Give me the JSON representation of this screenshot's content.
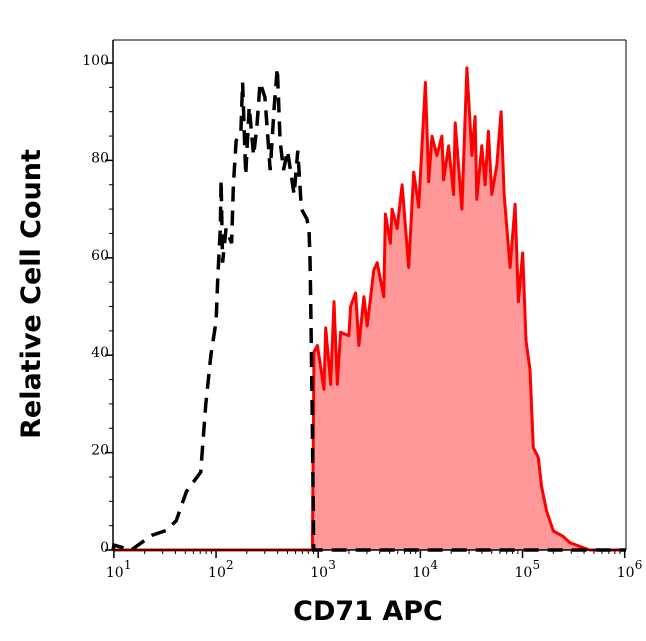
{
  "chart_data": {
    "type": "area",
    "title": "",
    "xlabel": "CD71 APC",
    "ylabel": "Relative Cell Count",
    "x_scale": "log",
    "xlim": [
      9.8,
      1030000
    ],
    "ylim": [
      0,
      105
    ],
    "grid": false,
    "y_ticks": [
      0,
      20,
      40,
      60,
      80,
      100
    ],
    "x_ticks": [
      {
        "value": 10,
        "base": "10",
        "exp": "1"
      },
      {
        "value": 100,
        "base": "10",
        "exp": "2"
      },
      {
        "value": 1000,
        "base": "10",
        "exp": "3"
      },
      {
        "value": 10000,
        "base": "10",
        "exp": "4"
      },
      {
        "value": 100000,
        "base": "10",
        "exp": "5"
      },
      {
        "value": 1000000,
        "base": "10",
        "exp": "6"
      }
    ],
    "colors": {
      "stained_line": "#ff0000",
      "stained_fill": "#ff9999",
      "control_line": "#000000"
    },
    "series": [
      {
        "style": "dashed-line",
        "color": "#000000",
        "x": [
          9.8,
          10,
          14.8,
          23.4,
          32.4,
          40.7,
          51.3,
          70.8,
          79.4,
          89.1,
          100,
          104,
          110,
          112,
          116,
          125,
          142,
          148,
          157,
          175,
          182,
          195,
          211,
          233,
          251,
          270,
          301,
          339,
          371,
          398,
          424,
          457,
          501,
          581,
          631,
          685,
          773,
          813,
          832,
          845,
          871,
          904,
          1030000
        ],
        "y": [
          0,
          1,
          0,
          3,
          4,
          6,
          12,
          16,
          30,
          40,
          47,
          56,
          66,
          76,
          59,
          66,
          63,
          75,
          84,
          86,
          96,
          77,
          91,
          81,
          87,
          96,
          93,
          78,
          91,
          99,
          84,
          78,
          82,
          73,
          82,
          70,
          68,
          66,
          59,
          51,
          30,
          0,
          0
        ]
      },
      {
        "style": "filled-line",
        "color": "#ff0000",
        "x": [
          9.8,
          860,
          877,
          910,
          982,
          1140,
          1183,
          1324,
          1427,
          1538,
          1657,
          1999,
          2075,
          2323,
          2503,
          2800,
          3015,
          3499,
          3776,
          4385,
          4550,
          5093,
          5285,
          5914,
          6619,
          7690,
          8610,
          9640,
          11190,
          12060,
          13000,
          14530,
          16260,
          16870,
          18880,
          21130,
          21930,
          25470,
          28510,
          31910,
          34370,
          35700,
          39940,
          43040,
          46380,
          49980,
          55940,
          61660,
          65950,
          75490,
          84500,
          91050,
          100300,
          108100,
          118300,
          127400,
          142600,
          153700,
          171900,
          199900,
          250300,
          290500,
          391700,
          455100,
          1030000
        ],
        "y": [
          0,
          0,
          0,
          40.7,
          42,
          33,
          45.6,
          34,
          51,
          34,
          44.7,
          44,
          50,
          52.8,
          42,
          52,
          46,
          57.5,
          59,
          52,
          69,
          63,
          70,
          66,
          75,
          58,
          77.6,
          70.4,
          96,
          75.6,
          85,
          81,
          85,
          76,
          83,
          73,
          87.7,
          70,
          99,
          81,
          89,
          72,
          83,
          75,
          86,
          73,
          79,
          90,
          73,
          58,
          71,
          51,
          61,
          43,
          37,
          21,
          19,
          13,
          8,
          3.9,
          2.8,
          1.5,
          0.5,
          0,
          0
        ]
      }
    ]
  }
}
